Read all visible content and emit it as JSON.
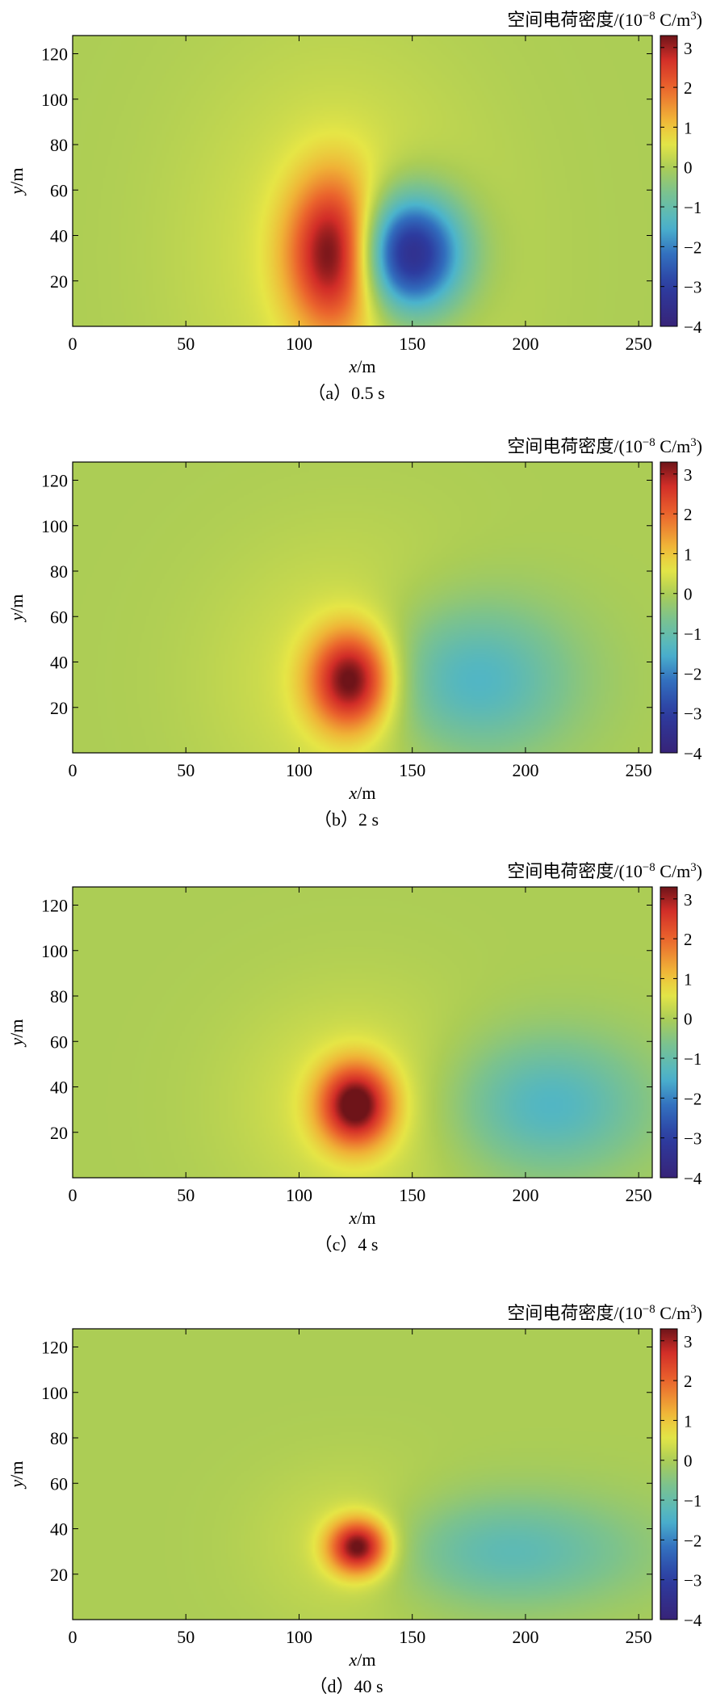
{
  "chart_data": [
    {
      "type": "heatmap",
      "caption": "（a）0.5 s",
      "colorbar_title": "空间电荷密度/(10^-8 C/m^3)",
      "xlabel": "x/m",
      "ylabel": "y/m",
      "xlim": [
        0,
        256
      ],
      "ylim": [
        0,
        128
      ],
      "xticks": [
        0,
        50,
        100,
        150,
        200,
        250
      ],
      "yticks": [
        20,
        40,
        60,
        80,
        100,
        120
      ],
      "colorbar_range": [
        -4,
        3.3
      ],
      "colorbar_ticks": [
        3,
        2,
        1,
        0,
        -1,
        -2,
        -3,
        -4
      ],
      "source_x": [
        116,
        32
      ],
      "sink_x": [
        148,
        32
      ],
      "source_radius": [
        20,
        33
      ],
      "sink_radius": [
        24,
        26
      ],
      "peak": 3.2,
      "trough": -4.0
    },
    {
      "type": "heatmap",
      "caption": "（b）2 s",
      "colorbar_title": "空间电荷密度/(10^-8 C/m^3)",
      "xlabel": "x/m",
      "ylabel": "y/m",
      "xlim": [
        0,
        256
      ],
      "ylim": [
        0,
        128
      ],
      "xticks": [
        0,
        50,
        100,
        150,
        200,
        250
      ],
      "yticks": [
        20,
        40,
        60,
        80,
        100,
        120
      ],
      "colorbar_range": [
        -4,
        3.3
      ],
      "colorbar_ticks": [
        3,
        2,
        1,
        0,
        -1,
        -2,
        -3,
        -4
      ],
      "source_x": [
        123,
        32
      ],
      "sink_x": [
        175,
        32
      ],
      "source_radius": [
        18,
        22
      ],
      "sink_radius": [
        44,
        34
      ],
      "peak": 3.2,
      "trough": -1.6
    },
    {
      "type": "heatmap",
      "caption": "（c）4 s",
      "colorbar_title": "空间电荷密度/(10^-8 C/m^3)",
      "xlabel": "x/m",
      "ylabel": "y/m",
      "xlim": [
        0,
        256
      ],
      "ylim": [
        0,
        128
      ],
      "xticks": [
        0,
        50,
        100,
        150,
        200,
        250
      ],
      "yticks": [
        20,
        40,
        60,
        80,
        100,
        120
      ],
      "colorbar_range": [
        -4,
        3.3
      ],
      "colorbar_ticks": [
        3,
        2,
        1,
        0,
        -1,
        -2,
        -3,
        -4
      ],
      "source_x": [
        125,
        32
      ],
      "sink_x": [
        210,
        32
      ],
      "source_radius": [
        16,
        18
      ],
      "sink_radius": [
        44,
        30
      ],
      "peak": 3.2,
      "trough": -1.4
    },
    {
      "type": "heatmap",
      "caption": "（d）40 s",
      "colorbar_title": "空间电荷密度/(10^-8 C/m^3)",
      "xlabel": "x/m",
      "ylabel": "y/m",
      "xlim": [
        0,
        256
      ],
      "ylim": [
        0,
        128
      ],
      "xticks": [
        0,
        50,
        100,
        150,
        200,
        250
      ],
      "yticks": [
        20,
        40,
        60,
        80,
        100,
        120
      ],
      "colorbar_range": [
        -4,
        3.3
      ],
      "colorbar_ticks": [
        3,
        2,
        1,
        0,
        -1,
        -2,
        -3,
        -4
      ],
      "source_x": [
        126,
        32
      ],
      "sink_x": [
        190,
        30
      ],
      "source_radius": [
        13,
        12
      ],
      "sink_radius": [
        60,
        24
      ],
      "peak": 3.2,
      "trough": -1.2
    }
  ]
}
